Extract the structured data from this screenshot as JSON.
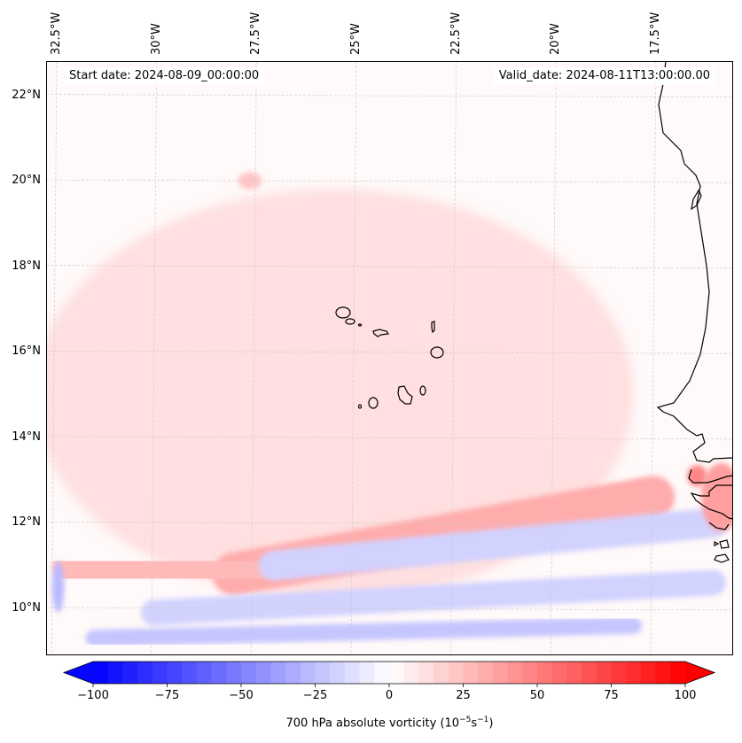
{
  "figure": {
    "type": "map",
    "title_left": "Start date: 2024-08-09_00:00:00",
    "title_right": "Valid_date: 2024-08-11T13:00:00.00",
    "variable": "700 hPa absolute vorticity",
    "units_prefix": "(10",
    "units_exp1": "−5",
    "units_mid": "s",
    "units_exp2": "−1",
    "units_suffix": ")"
  },
  "map": {
    "projection": "lat-lon (slightly curved graticule)",
    "region": "Eastern tropical Atlantic / Cape Verde / West African coast",
    "lon_range": [
      -32.7,
      -15.5
    ],
    "lat_range": [
      8.9,
      22.8
    ],
    "lon_ticks": [
      "32.5°W",
      "30°W",
      "27.5°W",
      "25°W",
      "22.5°W",
      "20°W",
      "17.5°W"
    ],
    "lon_tick_values": [
      -32.5,
      -30,
      -27.5,
      -25,
      -22.5,
      -20,
      -17.5
    ],
    "lat_ticks": [
      "22°N",
      "20°N",
      "18°N",
      "16°N",
      "14°N",
      "12°N",
      "10°N"
    ],
    "lat_tick_values": [
      22,
      20,
      18,
      16,
      14,
      12,
      10
    ],
    "gridlines": true,
    "features": [
      "coastlines",
      "Cape Verde islands",
      "West African coastline (Mauritania, Senegal, Gambia, Guinea-Bissau)"
    ]
  },
  "colorbar": {
    "orientation": "horizontal",
    "location": "bottom",
    "colormap": "bwr",
    "vmin": -100,
    "vmax": 100,
    "extend": "both",
    "levels": 40,
    "ticks": [
      "−100",
      "−75",
      "−50",
      "−25",
      "0",
      "25",
      "50",
      "75",
      "100"
    ],
    "tick_values": [
      -100,
      -75,
      -50,
      -25,
      0,
      25,
      50,
      75,
      100
    ],
    "min_color": "#0000ff",
    "mid_color": "#ffffff",
    "max_color": "#ff0000"
  },
  "chart_data": {
    "type": "heatmap",
    "title": "Start date: 2024-08-09_00:00:00 | Valid_date: 2024-08-11T13:00:00.00",
    "xlabel": "Longitude",
    "ylabel": "Latitude",
    "colorbar_label": "700 hPa absolute vorticity (10^-5 s^-1)",
    "x_ticks": [
      "32.5°W",
      "30°W",
      "27.5°W",
      "25°W",
      "22.5°W",
      "20°W",
      "17.5°W"
    ],
    "y_ticks": [
      "22°N",
      "20°N",
      "18°N",
      "16°N",
      "14°N",
      "12°N",
      "10°N"
    ],
    "value_range": [
      -100,
      100
    ],
    "background_value": 3,
    "features": [
      {
        "name": "vortex near Cape Verde",
        "lon": -23.5,
        "lat": 15.2,
        "value": 25,
        "shape": "ellipse",
        "rlon": 1.6,
        "rlat": 1.3
      },
      {
        "name": "broad positive swirl ring",
        "lon": -25.5,
        "lat": 15.0,
        "value": 10,
        "shape": "ellipse",
        "rlon": 7.5,
        "rlat": 4.8
      },
      {
        "name": "positive band 12N",
        "lon_start": -28.0,
        "lat_start": 10.8,
        "lon_end": -17.5,
        "lat_end": 12.6,
        "value": 30,
        "width_deg": 0.5
      },
      {
        "name": "positive band 11N west",
        "lon_start": -32.0,
        "lat_start": 11.0,
        "lon_end": -27.0,
        "lat_end": 10.8,
        "value": 25,
        "width_deg": 0.5
      },
      {
        "name": "negative band 11.5N",
        "lon_start": -27.0,
        "lat_start": 11.0,
        "lon_end": -16.0,
        "lat_end": 12.0,
        "value": -20,
        "width_deg": 0.35
      },
      {
        "name": "negative band 10N",
        "lon_start": -30.0,
        "lat_start": 9.9,
        "lon_end": -16.0,
        "lat_end": 10.6,
        "value": -20,
        "width_deg": 0.3
      },
      {
        "name": "negative band 9.3N",
        "lon_start": -31.5,
        "lat_start": 9.3,
        "lon_end": -18.0,
        "lat_end": 9.6,
        "value": -25,
        "width_deg": 0.2
      },
      {
        "name": "negative spot west edge",
        "lon": -32.4,
        "lat": 10.5,
        "value": -30,
        "shape": "ellipse",
        "rlon": 0.15,
        "rlat": 0.6
      },
      {
        "name": "positive spot 13N",
        "lon": -16.4,
        "lat": 13.1,
        "value": 45,
        "shape": "ellipse",
        "rlon": 0.25,
        "rlat": 0.25
      },
      {
        "name": "positive over Guinea-Bissau coast",
        "lon": -15.8,
        "lat": 12.6,
        "value": 35,
        "shape": "ellipse",
        "rlon": 0.5,
        "rlat": 0.8
      },
      {
        "name": "positive spot 20N",
        "lon": -27.6,
        "lat": 20.0,
        "value": 20,
        "shape": "ellipse",
        "rlon": 0.3,
        "rlat": 0.2
      }
    ]
  }
}
